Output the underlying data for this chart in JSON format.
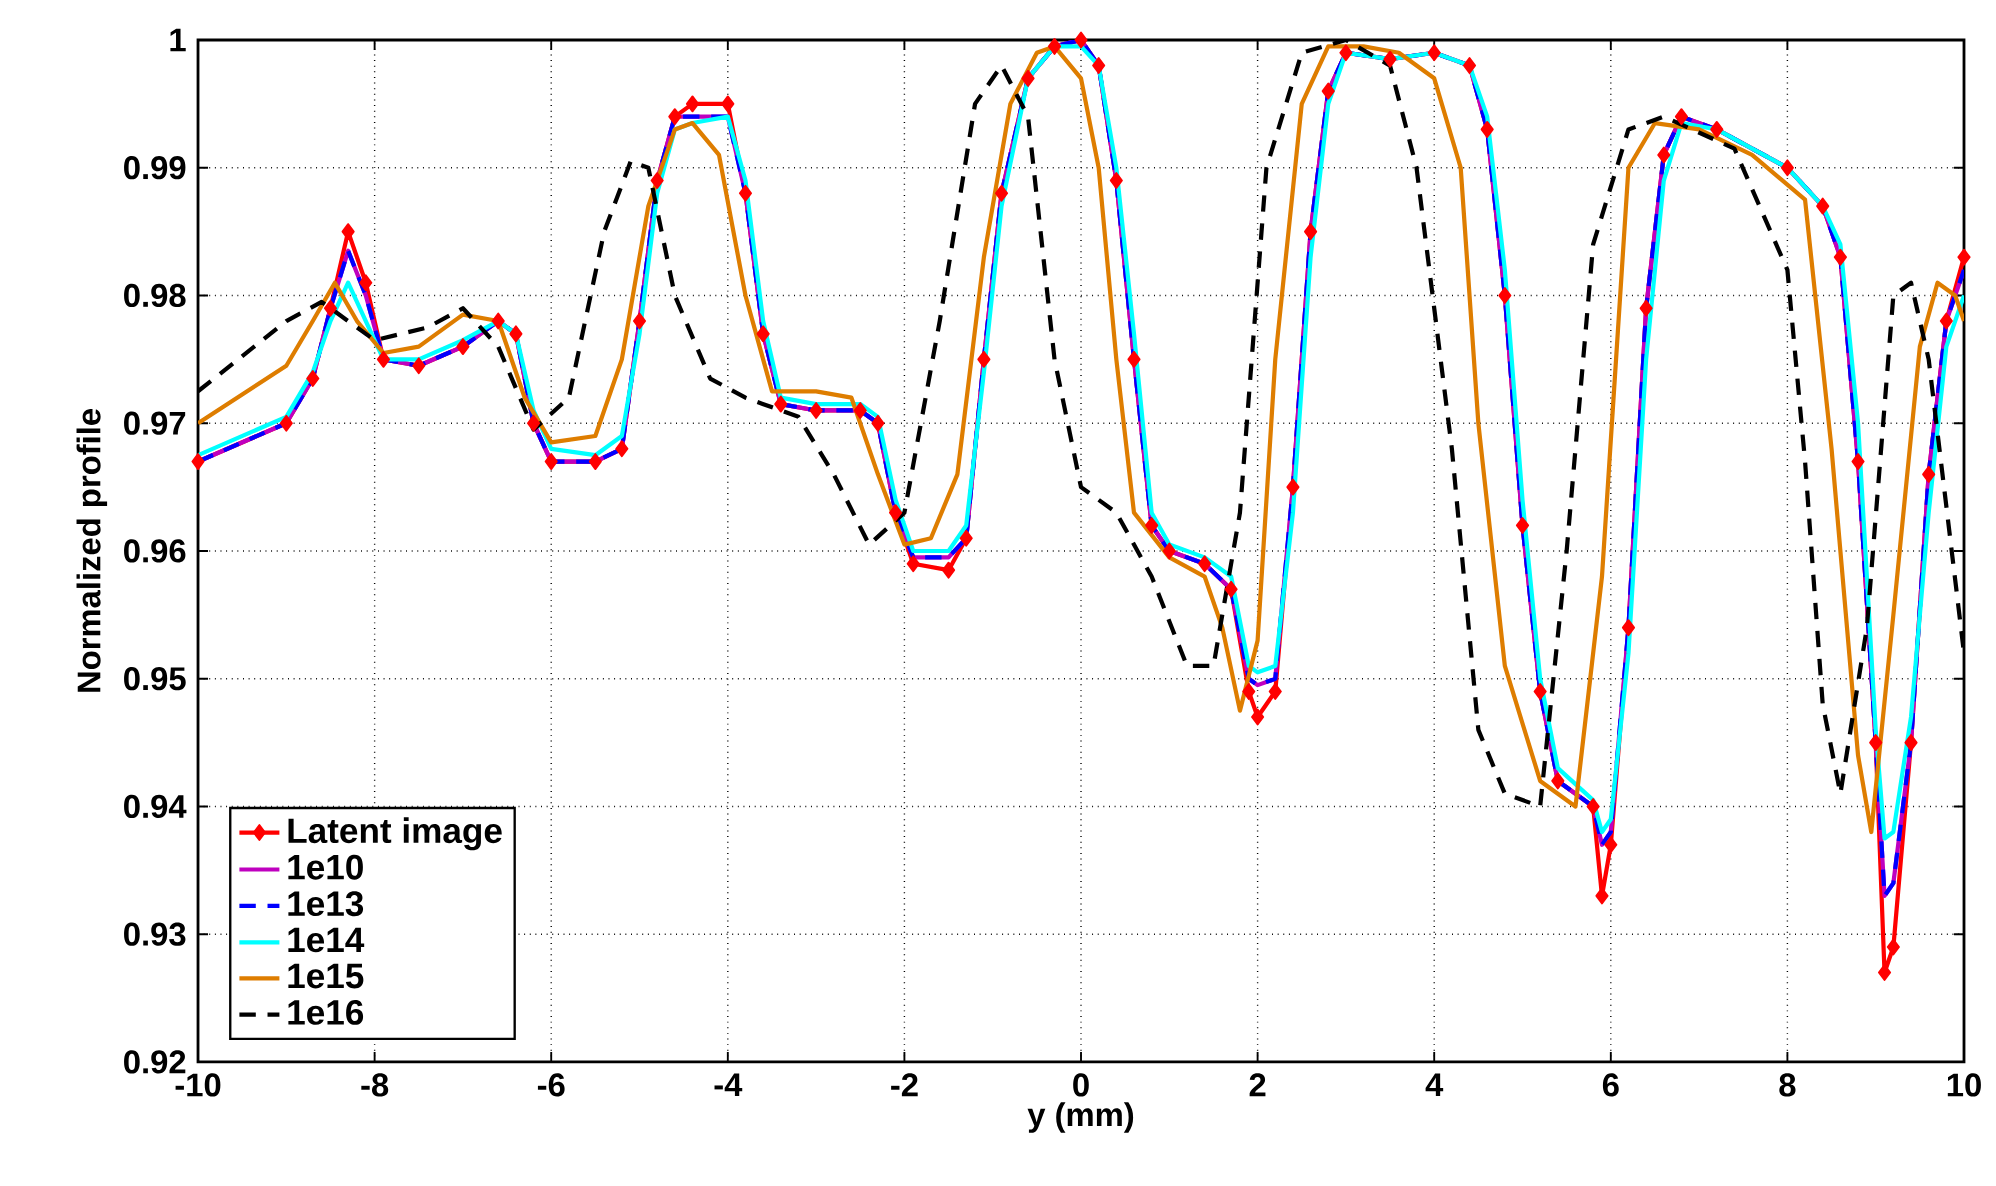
{
  "chart_data": {
    "type": "line",
    "xlabel": "y (mm)",
    "ylabel": "Normalized profile",
    "xlim": [
      -10,
      10
    ],
    "ylim": [
      0.92,
      1
    ],
    "xticks": [
      -10,
      -8,
      -6,
      -4,
      -2,
      0,
      2,
      4,
      6,
      8,
      10
    ],
    "yticks": [
      0.92,
      0.93,
      0.94,
      0.95,
      0.96,
      0.97,
      0.98,
      0.99,
      1
    ],
    "grid": true,
    "legend": "bottom left",
    "series": [
      {
        "name": "Latent image",
        "color": "#ff0000",
        "marker": "diamond",
        "line_style": "solid",
        "x": [
          -10,
          -9,
          -8.7,
          -8.5,
          -8.3,
          -8.1,
          -7.9,
          -7.5,
          -7,
          -6.6,
          -6.4,
          -6.2,
          -6,
          -5.5,
          -5.2,
          -5,
          -4.8,
          -4.6,
          -4.4,
          -4,
          -3.8,
          -3.6,
          -3.4,
          -3,
          -2.5,
          -2.3,
          -2.1,
          -1.9,
          -1.5,
          -1.3,
          -1.1,
          -0.9,
          -0.6,
          -0.3,
          0,
          0.2,
          0.4,
          0.6,
          0.8,
          1,
          1.4,
          1.7,
          1.9,
          2,
          2.2,
          2.4,
          2.6,
          2.8,
          3,
          3.5,
          4,
          4.4,
          4.6,
          4.8,
          5,
          5.2,
          5.4,
          5.8,
          5.9,
          6,
          6.2,
          6.4,
          6.6,
          6.8,
          7.2,
          8,
          8.4,
          8.6,
          8.8,
          9,
          9.1,
          9.2,
          9.4,
          9.6,
          9.8,
          10
        ],
        "values": [
          0.967,
          0.97,
          0.9735,
          0.979,
          0.985,
          0.981,
          0.975,
          0.9745,
          0.976,
          0.978,
          0.977,
          0.97,
          0.967,
          0.967,
          0.968,
          0.978,
          0.989,
          0.994,
          0.995,
          0.995,
          0.988,
          0.977,
          0.9715,
          0.971,
          0.971,
          0.97,
          0.963,
          0.959,
          0.9585,
          0.961,
          0.975,
          0.988,
          0.997,
          0.9995,
          1.0,
          0.998,
          0.989,
          0.975,
          0.962,
          0.96,
          0.959,
          0.957,
          0.949,
          0.947,
          0.949,
          0.965,
          0.985,
          0.996,
          0.999,
          0.9985,
          0.999,
          0.998,
          0.993,
          0.98,
          0.962,
          0.949,
          0.942,
          0.94,
          0.933,
          0.937,
          0.954,
          0.979,
          0.991,
          0.994,
          0.993,
          0.99,
          0.987,
          0.983,
          0.967,
          0.945,
          0.927,
          0.929,
          0.945,
          0.966,
          0.978,
          0.983
        ]
      },
      {
        "name": "1e10",
        "color": "#bf00bf",
        "marker": "none",
        "line_style": "solid",
        "x": [
          -10,
          -9,
          -8.7,
          -8.5,
          -8.3,
          -8.1,
          -7.9,
          -7.5,
          -7,
          -6.6,
          -6.4,
          -6.2,
          -6,
          -5.5,
          -5.2,
          -5,
          -4.8,
          -4.6,
          -4.4,
          -4,
          -3.8,
          -3.6,
          -3.4,
          -3,
          -2.5,
          -2.3,
          -2.1,
          -1.9,
          -1.5,
          -1.3,
          -1.1,
          -0.9,
          -0.6,
          -0.3,
          0,
          0.2,
          0.4,
          0.6,
          0.8,
          1,
          1.4,
          1.7,
          1.9,
          2,
          2.2,
          2.4,
          2.6,
          2.8,
          3,
          3.5,
          4,
          4.4,
          4.6,
          4.8,
          5,
          5.2,
          5.4,
          5.8,
          5.9,
          6,
          6.2,
          6.4,
          6.6,
          6.8,
          7.2,
          8,
          8.4,
          8.6,
          8.8,
          9,
          9.1,
          9.2,
          9.4,
          9.6,
          9.8,
          10
        ],
        "values": [
          0.967,
          0.97,
          0.9735,
          0.979,
          0.9835,
          0.98,
          0.975,
          0.9745,
          0.976,
          0.978,
          0.977,
          0.97,
          0.967,
          0.967,
          0.968,
          0.978,
          0.989,
          0.994,
          0.994,
          0.994,
          0.988,
          0.977,
          0.9715,
          0.971,
          0.971,
          0.97,
          0.963,
          0.9595,
          0.9595,
          0.961,
          0.975,
          0.988,
          0.997,
          0.9995,
          1.0,
          0.998,
          0.989,
          0.975,
          0.962,
          0.96,
          0.959,
          0.957,
          0.95,
          0.9495,
          0.95,
          0.965,
          0.985,
          0.996,
          0.999,
          0.9985,
          0.999,
          0.998,
          0.993,
          0.98,
          0.962,
          0.949,
          0.942,
          0.94,
          0.937,
          0.938,
          0.954,
          0.979,
          0.991,
          0.994,
          0.993,
          0.99,
          0.987,
          0.983,
          0.967,
          0.945,
          0.933,
          0.934,
          0.945,
          0.966,
          0.978,
          0.982
        ]
      },
      {
        "name": "1e13",
        "color": "#0000ff",
        "marker": "none",
        "line_style": "dashed",
        "x": [
          -10,
          -9,
          -8.7,
          -8.5,
          -8.3,
          -8.1,
          -7.9,
          -7.5,
          -7,
          -6.6,
          -6.4,
          -6.2,
          -6,
          -5.5,
          -5.2,
          -5,
          -4.8,
          -4.6,
          -4.4,
          -4,
          -3.8,
          -3.6,
          -3.4,
          -3,
          -2.5,
          -2.3,
          -2.1,
          -1.9,
          -1.5,
          -1.3,
          -1.1,
          -0.9,
          -0.6,
          -0.3,
          0,
          0.2,
          0.4,
          0.6,
          0.8,
          1,
          1.4,
          1.7,
          1.9,
          2,
          2.2,
          2.4,
          2.6,
          2.8,
          3,
          3.5,
          4,
          4.4,
          4.6,
          4.8,
          5,
          5.2,
          5.4,
          5.8,
          5.9,
          6,
          6.2,
          6.4,
          6.6,
          6.8,
          7.2,
          8,
          8.4,
          8.6,
          8.8,
          9,
          9.1,
          9.2,
          9.4,
          9.6,
          9.8,
          10
        ],
        "values": [
          0.967,
          0.97,
          0.9735,
          0.979,
          0.9835,
          0.98,
          0.975,
          0.9745,
          0.976,
          0.978,
          0.977,
          0.97,
          0.967,
          0.967,
          0.968,
          0.978,
          0.989,
          0.994,
          0.994,
          0.994,
          0.988,
          0.977,
          0.9715,
          0.971,
          0.971,
          0.97,
          0.963,
          0.9595,
          0.9595,
          0.961,
          0.975,
          0.988,
          0.997,
          0.9995,
          1.0,
          0.998,
          0.989,
          0.975,
          0.962,
          0.96,
          0.959,
          0.957,
          0.95,
          0.9495,
          0.95,
          0.965,
          0.985,
          0.996,
          0.999,
          0.9985,
          0.999,
          0.998,
          0.993,
          0.98,
          0.962,
          0.949,
          0.942,
          0.94,
          0.937,
          0.938,
          0.954,
          0.979,
          0.991,
          0.994,
          0.993,
          0.99,
          0.987,
          0.983,
          0.967,
          0.945,
          0.933,
          0.934,
          0.945,
          0.966,
          0.978,
          0.982
        ]
      },
      {
        "name": "1e14",
        "color": "#00ffff",
        "marker": "none",
        "line_style": "solid",
        "x": [
          -10,
          -9,
          -8.7,
          -8.5,
          -8.3,
          -8.1,
          -7.9,
          -7.5,
          -7,
          -6.6,
          -6.4,
          -6.2,
          -6,
          -5.5,
          -5.2,
          -5,
          -4.8,
          -4.6,
          -4.4,
          -4,
          -3.8,
          -3.6,
          -3.4,
          -3,
          -2.5,
          -2.3,
          -2.1,
          -1.9,
          -1.5,
          -1.3,
          -1.1,
          -0.9,
          -0.6,
          -0.3,
          0,
          0.2,
          0.4,
          0.6,
          0.8,
          1,
          1.4,
          1.7,
          1.9,
          2,
          2.2,
          2.4,
          2.6,
          2.8,
          3,
          3.5,
          4,
          4.4,
          4.6,
          4.8,
          5,
          5.2,
          5.4,
          5.8,
          5.9,
          6,
          6.2,
          6.4,
          6.6,
          6.8,
          7.2,
          8,
          8.4,
          8.6,
          8.8,
          9,
          9.1,
          9.2,
          9.4,
          9.6,
          9.8,
          10
        ],
        "values": [
          0.9675,
          0.9705,
          0.974,
          0.978,
          0.981,
          0.978,
          0.975,
          0.975,
          0.9765,
          0.978,
          0.977,
          0.971,
          0.968,
          0.9675,
          0.969,
          0.977,
          0.988,
          0.993,
          0.9935,
          0.994,
          0.989,
          0.978,
          0.972,
          0.9715,
          0.9715,
          0.9705,
          0.964,
          0.96,
          0.96,
          0.962,
          0.974,
          0.987,
          0.997,
          0.9995,
          0.9995,
          0.998,
          0.99,
          0.977,
          0.963,
          0.9605,
          0.9595,
          0.958,
          0.951,
          0.9505,
          0.951,
          0.963,
          0.983,
          0.995,
          0.999,
          0.9985,
          0.999,
          0.998,
          0.994,
          0.982,
          0.964,
          0.95,
          0.943,
          0.9405,
          0.938,
          0.939,
          0.952,
          0.975,
          0.989,
          0.9935,
          0.993,
          0.99,
          0.987,
          0.984,
          0.97,
          0.946,
          0.9375,
          0.938,
          0.947,
          0.963,
          0.976,
          0.98
        ]
      },
      {
        "name": "1e15",
        "color": "#de7d00",
        "marker": "none",
        "line_style": "solid",
        "x": [
          -10,
          -9,
          -8.7,
          -8.45,
          -8.2,
          -7.9,
          -7.5,
          -7,
          -6.6,
          -6.3,
          -6,
          -5.5,
          -5.2,
          -4.9,
          -4.6,
          -4.4,
          -4.1,
          -3.8,
          -3.5,
          -3,
          -2.6,
          -2.3,
          -2,
          -1.7,
          -1.4,
          -1.1,
          -0.8,
          -0.5,
          -0.3,
          0,
          0.2,
          0.4,
          0.6,
          1,
          1.4,
          1.6,
          1.8,
          2,
          2.2,
          2.5,
          2.8,
          3.2,
          3.6,
          4,
          4.3,
          4.5,
          4.8,
          5.2,
          5.6,
          5.9,
          6.2,
          6.5,
          7,
          7.6,
          8.2,
          8.5,
          8.8,
          8.95,
          9.2,
          9.5,
          9.7,
          9.9,
          10
        ],
        "values": [
          0.97,
          0.9745,
          0.978,
          0.981,
          0.978,
          0.9755,
          0.976,
          0.9785,
          0.978,
          0.972,
          0.9685,
          0.969,
          0.975,
          0.987,
          0.993,
          0.9935,
          0.991,
          0.98,
          0.9725,
          0.9725,
          0.972,
          0.966,
          0.9605,
          0.961,
          0.966,
          0.983,
          0.995,
          0.999,
          0.9995,
          0.997,
          0.99,
          0.975,
          0.963,
          0.9595,
          0.958,
          0.954,
          0.9475,
          0.953,
          0.975,
          0.995,
          0.9995,
          0.9995,
          0.999,
          0.997,
          0.99,
          0.97,
          0.951,
          0.942,
          0.94,
          0.958,
          0.99,
          0.9935,
          0.993,
          0.991,
          0.9875,
          0.968,
          0.944,
          0.938,
          0.955,
          0.976,
          0.981,
          0.98,
          0.978
        ]
      },
      {
        "name": "1e16",
        "color": "#000000",
        "marker": "none",
        "line_style": "dashed",
        "x": [
          -10,
          -9,
          -8.6,
          -8,
          -7.4,
          -7,
          -6.6,
          -6.2,
          -5.8,
          -5.4,
          -5.1,
          -4.9,
          -4.6,
          -4.2,
          -3.8,
          -3.2,
          -2.8,
          -2.4,
          -2,
          -1.6,
          -1.2,
          -0.9,
          -0.6,
          -0.3,
          0,
          0.4,
          0.8,
          1.2,
          1.5,
          1.8,
          2.1,
          2.5,
          3,
          3.5,
          3.8,
          4.2,
          4.5,
          4.8,
          5.2,
          5.5,
          5.8,
          6.2,
          6.6,
          7.4,
          8,
          8.2,
          8.4,
          8.6,
          8.9,
          9.2,
          9.4,
          9.6,
          10
        ],
        "values": [
          0.9725,
          0.978,
          0.9795,
          0.9765,
          0.9775,
          0.979,
          0.976,
          0.9695,
          0.972,
          0.985,
          0.9905,
          0.99,
          0.98,
          0.9735,
          0.972,
          0.9705,
          0.966,
          0.9605,
          0.963,
          0.978,
          0.995,
          0.998,
          0.994,
          0.975,
          0.965,
          0.963,
          0.958,
          0.951,
          0.951,
          0.963,
          0.99,
          0.999,
          1.0,
          0.998,
          0.99,
          0.968,
          0.946,
          0.941,
          0.94,
          0.96,
          0.984,
          0.993,
          0.994,
          0.9915,
          0.982,
          0.967,
          0.948,
          0.941,
          0.954,
          0.98,
          0.981,
          0.975,
          0.952
        ]
      }
    ]
  }
}
